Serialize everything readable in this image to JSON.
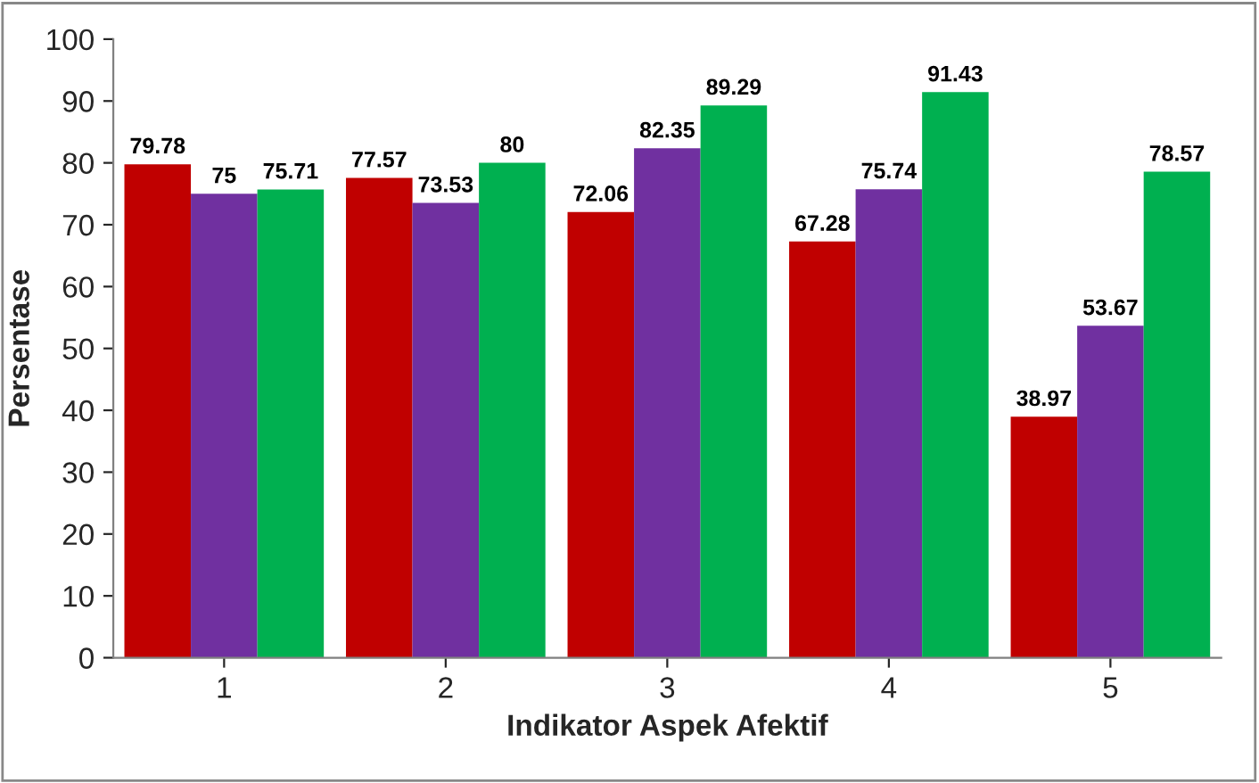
{
  "chart_data": {
    "type": "bar",
    "xlabel": "Indikator Aspek Afektif",
    "ylabel": "Persentase",
    "categories": [
      "1",
      "2",
      "3",
      "4",
      "5"
    ],
    "series": [
      {
        "color": "#c00000",
        "values": [
          79.78,
          77.57,
          72.06,
          67.28,
          38.97
        ]
      },
      {
        "color": "#7030a0",
        "values": [
          75,
          73.53,
          82.35,
          75.74,
          53.67
        ]
      },
      {
        "color": "#00b050",
        "values": [
          75.71,
          80,
          89.29,
          91.43,
          78.57
        ]
      }
    ],
    "ylim": [
      0,
      100
    ],
    "yticks": [
      0,
      10,
      20,
      30,
      40,
      50,
      60,
      70,
      80,
      90,
      100
    ],
    "data_labels": true,
    "grid": false,
    "legend": false
  }
}
